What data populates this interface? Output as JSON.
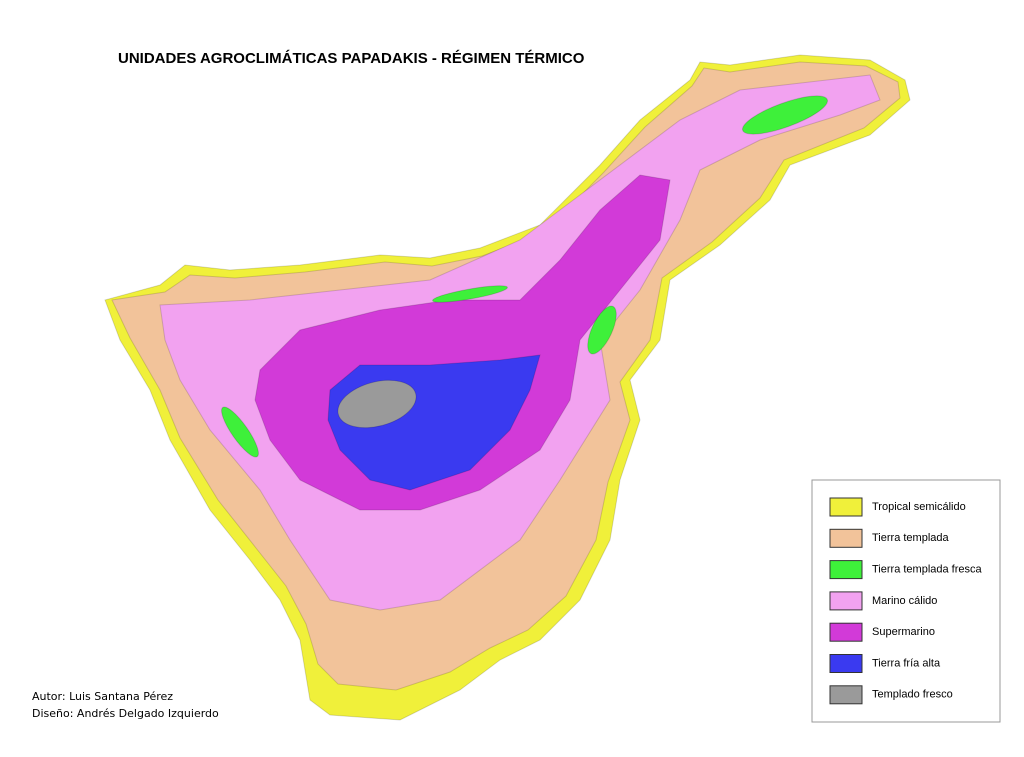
{
  "title": "UNIDADES AGROCLIMÁTICAS PAPADAKIS - RÉGIMEN TÉRMICO",
  "legend": [
    {
      "label": "Tropical semicálido",
      "color": "#f0f03a"
    },
    {
      "label": "Tierra templada",
      "color": "#f2c39a"
    },
    {
      "label": "Tierra templada fresca",
      "color": "#3ef03a"
    },
    {
      "label": "Marino cálido",
      "color": "#f2a2f0"
    },
    {
      "label": "Supermarino",
      "color": "#d23ad8"
    },
    {
      "label": "Tierra fría alta",
      "color": "#3a3af0"
    },
    {
      "label": "Templado fresco",
      "color": "#9a9a9a"
    }
  ],
  "credits": [
    "Autor: Luis Santana Pérez",
    "Diseño: Andrés Delgado Izquierdo"
  ]
}
